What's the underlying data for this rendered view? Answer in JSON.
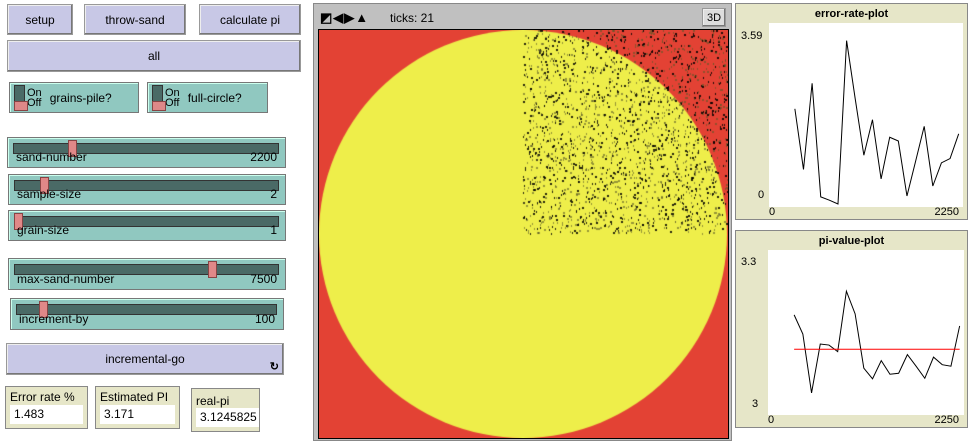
{
  "buttons": {
    "setup": "setup",
    "throw_sand": "throw-sand",
    "calculate_pi": "calculate pi",
    "all": "all",
    "incremental_go": "incremental-go",
    "forever_icon": "forever-icon"
  },
  "switches": [
    {
      "label": "grains-pile?",
      "on": "On",
      "off": "Off",
      "state": "off"
    },
    {
      "label": "full-circle?",
      "on": "On",
      "off": "Off",
      "state": "off"
    }
  ],
  "sliders": [
    {
      "label": "sand-number",
      "value": "2200",
      "fraction": 0.22
    },
    {
      "label": "sample-size",
      "value": "2",
      "fraction": 0.11
    },
    {
      "label": "grain-size",
      "value": "1",
      "fraction": 0.01
    },
    {
      "label": "max-sand-number",
      "value": "7500",
      "fraction": 0.75
    },
    {
      "label": "increment-by",
      "value": "100",
      "fraction": 0.1
    }
  ],
  "monitors": [
    {
      "label": "Error rate %",
      "value": "1.483"
    },
    {
      "label": "Estimated PI",
      "value": "3.171"
    },
    {
      "label": "real-pi",
      "value": "3.1245825"
    }
  ],
  "view": {
    "ticks": "ticks: 21",
    "three_d": "3D",
    "colors": {
      "background": "#e34234",
      "circle": "#eeee4a",
      "sand": "#000000"
    }
  },
  "chart_data": [
    {
      "type": "line",
      "title": "error-rate-plot",
      "xlim": [
        0,
        2250
      ],
      "ylim": [
        0,
        3.59
      ],
      "x_ticks": [
        "0",
        "2250"
      ],
      "y_ticks": [
        "0",
        "3.59"
      ],
      "series": [
        {
          "color": "#000000",
          "x": [
            300,
            400,
            500,
            600,
            700,
            800,
            900,
            1000,
            1100,
            1200,
            1300,
            1400,
            1500,
            1600,
            1700,
            1800,
            1900,
            2000,
            2100,
            2200
          ],
          "y": [
            2.01,
            0.73,
            2.55,
            0.15,
            0.08,
            0,
            3.45,
            2.22,
            1.03,
            1.78,
            0.53,
            1.41,
            1.33,
            0.17,
            0.9,
            1.64,
            0.38,
            0.87,
            0.96,
            1.483
          ]
        }
      ]
    },
    {
      "type": "line",
      "title": "pi-value-plot",
      "xlim": [
        0,
        2250
      ],
      "ylim": [
        3,
        3.3
      ],
      "x_ticks": [
        "0",
        "2250"
      ],
      "y_ticks": [
        "3",
        "3.3"
      ],
      "series": [
        {
          "color": "#000000",
          "x": [
            300,
            400,
            500,
            600,
            700,
            800,
            900,
            1000,
            1100,
            1200,
            1300,
            1400,
            1500,
            1600,
            1700,
            1800,
            1900,
            2000,
            2100,
            2200
          ],
          "y": [
            3.193,
            3.155,
            3.038,
            3.135,
            3.133,
            3.12,
            3.24,
            3.195,
            3.087,
            3.066,
            3.102,
            3.075,
            3.077,
            3.114,
            3.091,
            3.067,
            3.109,
            3.094,
            3.091,
            3.171
          ]
        },
        {
          "color": "#ff0000",
          "x": [
            300,
            2200
          ],
          "y": [
            3.1245825,
            3.1245825
          ]
        }
      ]
    }
  ]
}
